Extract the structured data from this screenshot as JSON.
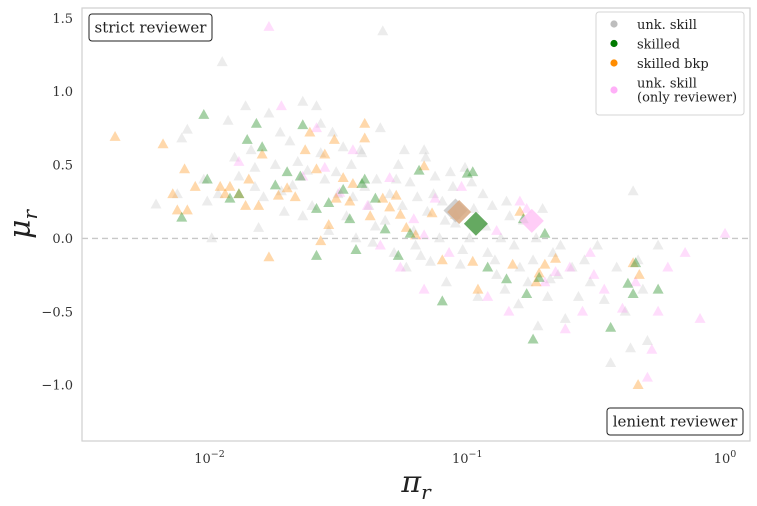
{
  "chart_data": {
    "type": "scatter",
    "xlabel": "π_r",
    "ylabel": "μ_r",
    "xscale": "log",
    "xlim": [
      0.0032,
      1.25
    ],
    "ylim": [
      -1.38,
      1.57
    ],
    "x_ticks": [
      0.01,
      0.1,
      1
    ],
    "x_tick_labels": [
      "10",
      "10",
      "10"
    ],
    "x_tick_exponents": [
      "−2",
      "−1",
      "0"
    ],
    "y_ticks": [
      1.5,
      1.0,
      0.5,
      0.0,
      -0.5,
      -1.0
    ],
    "y_tick_labels": [
      "1.5",
      "1.0",
      "0.5",
      "0.0",
      "−0.5",
      "−1.0"
    ],
    "reference_line_y": 0.0,
    "grid": false,
    "legend_position": "top-right",
    "annotations": {
      "top_left": "strict reviewer",
      "bottom_right": "lenient reviewer"
    },
    "series": [
      {
        "name": "unk. skill",
        "legend_lines": [
          "unk. skill"
        ],
        "color": "#c8c8c8",
        "legend_color": "#bdbdbd",
        "opacity": 0.35,
        "points": [
          [
            0.0062,
            0.23
          ],
          [
            0.0075,
            0.3
          ],
          [
            0.0078,
            0.68
          ],
          [
            0.0082,
            0.74
          ],
          [
            0.0095,
            0.4
          ],
          [
            0.0098,
            0.25
          ],
          [
            0.0102,
            0.0
          ],
          [
            0.0108,
            0.3
          ],
          [
            0.0112,
            1.2
          ],
          [
            0.0118,
            0.8
          ],
          [
            0.0125,
            0.55
          ],
          [
            0.013,
            0.42
          ],
          [
            0.0138,
            0.9
          ],
          [
            0.0145,
            0.6
          ],
          [
            0.015,
            0.35
          ],
          [
            0.0155,
            0.07
          ],
          [
            0.0162,
            0.28
          ],
          [
            0.017,
            0.85
          ],
          [
            0.018,
            0.5
          ],
          [
            0.0188,
            0.72
          ],
          [
            0.0195,
            0.18
          ],
          [
            0.0205,
            0.66
          ],
          [
            0.021,
            0.36
          ],
          [
            0.022,
            0.52
          ],
          [
            0.023,
            0.93
          ],
          [
            0.024,
            0.46
          ],
          [
            0.025,
            0.22
          ],
          [
            0.026,
            0.9
          ],
          [
            0.027,
            0.58
          ],
          [
            0.028,
            0.4
          ],
          [
            0.029,
            0.05
          ],
          [
            0.03,
            0.72
          ],
          [
            0.0315,
            0.3
          ],
          [
            0.033,
            0.62
          ],
          [
            0.034,
            0.15
          ],
          [
            0.0355,
            0.5
          ],
          [
            0.037,
            0.0
          ],
          [
            0.0385,
            0.6
          ],
          [
            0.04,
            0.35
          ],
          [
            0.0415,
            0.22
          ],
          [
            0.043,
            -0.03
          ],
          [
            0.0445,
            0.4
          ],
          [
            0.046,
            0.75
          ],
          [
            0.047,
            1.41
          ],
          [
            0.048,
            0.12
          ],
          [
            0.05,
            0.3
          ],
          [
            0.052,
            -0.1
          ],
          [
            0.054,
            0.5
          ],
          [
            0.056,
            0.22
          ],
          [
            0.058,
            -0.2
          ],
          [
            0.06,
            0.38
          ],
          [
            0.062,
            0.05
          ],
          [
            0.064,
            0.28
          ],
          [
            0.066,
            -0.12
          ],
          [
            0.068,
            0.6
          ],
          [
            0.07,
            0.18
          ],
          [
            0.072,
            -0.16
          ],
          [
            0.075,
            0.42
          ],
          [
            0.078,
            0.0
          ],
          [
            0.08,
            0.25
          ],
          [
            0.083,
            -0.3
          ],
          [
            0.086,
            0.45
          ],
          [
            0.09,
            0.1
          ],
          [
            0.094,
            -0.18
          ],
          [
            0.098,
            0.48
          ],
          [
            0.102,
            0.0
          ],
          [
            0.106,
            0.2
          ],
          [
            0.11,
            -0.4
          ],
          [
            0.115,
            0.3
          ],
          [
            0.12,
            -0.1
          ],
          [
            0.125,
            0.22
          ],
          [
            0.13,
            -0.25
          ],
          [
            0.135,
            0.0
          ],
          [
            0.14,
            -0.35
          ],
          [
            0.146,
            0.15
          ],
          [
            0.152,
            -0.05
          ],
          [
            0.158,
            -0.45
          ],
          [
            0.165,
            0.12
          ],
          [
            0.172,
            -0.3
          ],
          [
            0.18,
            -0.15
          ],
          [
            0.188,
            -0.6
          ],
          [
            0.196,
            0.2
          ],
          [
            0.205,
            -0.4
          ],
          [
            0.215,
            -0.1
          ],
          [
            0.225,
            -0.25
          ],
          [
            0.24,
            -0.55
          ],
          [
            0.255,
            -0.2
          ],
          [
            0.27,
            -0.4
          ],
          [
            0.285,
            -0.15
          ],
          [
            0.3,
            -0.3
          ],
          [
            0.32,
            -0.05
          ],
          [
            0.34,
            -0.42
          ],
          [
            0.36,
            -0.85
          ],
          [
            0.38,
            -0.2
          ],
          [
            0.41,
            -0.5
          ],
          [
            0.43,
            -0.75
          ],
          [
            0.44,
            0.32
          ],
          [
            0.46,
            -0.15
          ],
          [
            0.48,
            -0.35
          ],
          [
            0.5,
            -0.7
          ],
          [
            0.55,
            -0.05
          ],
          [
            0.015,
            0.48
          ],
          [
            0.019,
            0.32
          ],
          [
            0.023,
            0.15
          ],
          [
            0.027,
            0.78
          ],
          [
            0.031,
            0.45
          ],
          [
            0.036,
            0.28
          ],
          [
            0.039,
            0.58
          ],
          [
            0.044,
            0.08
          ],
          [
            0.053,
            0.4
          ],
          [
            0.057,
            0.6
          ],
          [
            0.063,
            -0.05
          ],
          [
            0.069,
            0.55
          ],
          [
            0.074,
            0.3
          ],
          [
            0.082,
            0.12
          ],
          [
            0.088,
            0.35
          ],
          [
            0.096,
            -0.08
          ],
          [
            0.104,
            0.38
          ],
          [
            0.118,
            0.08
          ],
          [
            0.128,
            -0.15
          ],
          [
            0.142,
            0.25
          ],
          [
            0.16,
            -0.2
          ],
          [
            0.185,
            0.0
          ],
          [
            0.21,
            -0.28
          ],
          [
            0.23,
            -0.05
          ]
        ]
      },
      {
        "name": "skilled",
        "legend_lines": [
          "skilled"
        ],
        "color": "#3a9a3a",
        "legend_color": "#007a00",
        "opacity": 0.45,
        "points": [
          [
            0.0078,
            0.14
          ],
          [
            0.0095,
            0.84
          ],
          [
            0.0098,
            0.4
          ],
          [
            0.012,
            0.27
          ],
          [
            0.013,
            0.3
          ],
          [
            0.014,
            0.67
          ],
          [
            0.0152,
            0.78
          ],
          [
            0.018,
            0.36
          ],
          [
            0.02,
            0.45
          ],
          [
            0.0225,
            0.42
          ],
          [
            0.023,
            0.77
          ],
          [
            0.026,
            0.2
          ],
          [
            0.026,
            -0.12
          ],
          [
            0.029,
            0.24
          ],
          [
            0.033,
            0.33
          ],
          [
            0.035,
            0.13
          ],
          [
            0.037,
            -0.08
          ],
          [
            0.04,
            0.4
          ],
          [
            0.044,
            0.27
          ],
          [
            0.048,
            0.06
          ],
          [
            0.054,
            -0.12
          ],
          [
            0.06,
            0.03
          ],
          [
            0.065,
            0.46
          ],
          [
            0.08,
            -0.43
          ],
          [
            0.1,
            0.44
          ],
          [
            0.105,
            0.45
          ],
          [
            0.12,
            -0.2
          ],
          [
            0.142,
            -0.28
          ],
          [
            0.165,
            0.13
          ],
          [
            0.17,
            -0.38
          ],
          [
            0.18,
            -0.69
          ],
          [
            0.19,
            -0.27
          ],
          [
            0.2,
            0.03
          ],
          [
            0.36,
            -0.61
          ],
          [
            0.42,
            -0.31
          ],
          [
            0.44,
            -0.38
          ],
          [
            0.45,
            -0.17
          ],
          [
            0.55,
            -0.35
          ],
          [
            0.016,
            0.62
          ],
          [
            0.039,
            0.37
          ]
        ]
      },
      {
        "name": "skilled bkp",
        "legend_lines": [
          "skilled bkp"
        ],
        "color": "#ff9d2e",
        "legend_color": "#ff8c00",
        "opacity": 0.4,
        "points": [
          [
            0.0043,
            0.69
          ],
          [
            0.0066,
            0.64
          ],
          [
            0.0072,
            0.3
          ],
          [
            0.0075,
            0.19
          ],
          [
            0.008,
            0.47
          ],
          [
            0.0082,
            0.19
          ],
          [
            0.0088,
            0.35
          ],
          [
            0.011,
            0.35
          ],
          [
            0.0115,
            0.3
          ],
          [
            0.012,
            0.35
          ],
          [
            0.013,
            0.3
          ],
          [
            0.0138,
            0.22
          ],
          [
            0.0142,
            0.4
          ],
          [
            0.0155,
            0.22
          ],
          [
            0.016,
            0.57
          ],
          [
            0.017,
            -0.13
          ],
          [
            0.0185,
            0.29
          ],
          [
            0.02,
            0.34
          ],
          [
            0.0215,
            0.28
          ],
          [
            0.0235,
            0.6
          ],
          [
            0.0245,
            0.72
          ],
          [
            0.026,
            0.47
          ],
          [
            0.027,
            -0.02
          ],
          [
            0.028,
            0.57
          ],
          [
            0.0305,
            0.67
          ],
          [
            0.031,
            0.27
          ],
          [
            0.033,
            0.41
          ],
          [
            0.035,
            0.25
          ],
          [
            0.036,
            0.37
          ],
          [
            0.04,
            0.78
          ],
          [
            0.04,
            0.68
          ],
          [
            0.042,
            0.15
          ],
          [
            0.047,
            0.27
          ],
          [
            0.05,
            0.21
          ],
          [
            0.055,
            0.16
          ],
          [
            0.058,
            0.07
          ],
          [
            0.063,
            0.02
          ],
          [
            0.068,
            0.49
          ],
          [
            0.073,
            0.17
          ],
          [
            0.08,
            -0.15
          ],
          [
            0.105,
            -0.16
          ],
          [
            0.11,
            -0.35
          ],
          [
            0.15,
            -0.18
          ],
          [
            0.16,
            0.18
          ],
          [
            0.185,
            -0.3
          ],
          [
            0.19,
            -0.24
          ],
          [
            0.2,
            -0.18
          ],
          [
            0.22,
            -0.14
          ],
          [
            0.44,
            -0.17
          ],
          [
            0.46,
            -1.0
          ],
          [
            0.465,
            -0.25
          ],
          [
            0.029,
            0.09
          ],
          [
            0.053,
            0.29
          ],
          [
            0.09,
            0.16
          ]
        ]
      },
      {
        "name": "unk. skill\n(only reviewer)",
        "legend_lines": [
          "unk. skill",
          "(only reviewer)"
        ],
        "color": "#ff9df5",
        "legend_color": "#ffb0f8",
        "opacity": 0.35,
        "points": [
          [
            0.017,
            1.44
          ],
          [
            0.019,
            0.9
          ],
          [
            0.013,
            0.52
          ],
          [
            0.023,
            0.42
          ],
          [
            0.026,
            0.75
          ],
          [
            0.028,
            0.48
          ],
          [
            0.032,
            0.31
          ],
          [
            0.036,
            0.6
          ],
          [
            0.041,
            0.22
          ],
          [
            0.046,
            -0.05
          ],
          [
            0.05,
            0.41
          ],
          [
            0.055,
            -0.2
          ],
          [
            0.062,
            0.13
          ],
          [
            0.068,
            -0.35
          ],
          [
            0.075,
            0.27
          ],
          [
            0.085,
            -0.1
          ],
          [
            0.095,
            0.35
          ],
          [
            0.12,
            -0.4
          ],
          [
            0.13,
            0.05
          ],
          [
            0.145,
            -0.5
          ],
          [
            0.16,
            0.25
          ],
          [
            0.17,
            0.2
          ],
          [
            0.2,
            -0.3
          ],
          [
            0.22,
            -0.23
          ],
          [
            0.25,
            -0.2
          ],
          [
            0.28,
            -0.5
          ],
          [
            0.3,
            -0.1
          ],
          [
            0.34,
            -0.35
          ],
          [
            0.4,
            -0.48
          ],
          [
            0.45,
            -0.3
          ],
          [
            0.5,
            -0.95
          ],
          [
            0.52,
            -0.76
          ],
          [
            0.55,
            -0.5
          ],
          [
            0.6,
            -0.2
          ],
          [
            0.7,
            -0.1
          ],
          [
            0.8,
            -0.55
          ],
          [
            1.0,
            0.03
          ],
          [
            0.068,
            0.02
          ],
          [
            0.24,
            -0.62
          ],
          [
            0.31,
            -0.25
          ]
        ]
      }
    ],
    "means": [
      {
        "series": "unk. skill",
        "x": 0.09,
        "y": 0.19,
        "color": "#c8c8c8"
      },
      {
        "series": "skilled bkp",
        "x": 0.093,
        "y": 0.18,
        "color": "#d8a982"
      },
      {
        "series": "skilled",
        "x": 0.108,
        "y": 0.1,
        "color": "#4a9a45"
      },
      {
        "series": "unk. skill\n(only reviewer)",
        "x": 0.178,
        "y": 0.12,
        "color": "#ffc4f6"
      }
    ]
  }
}
